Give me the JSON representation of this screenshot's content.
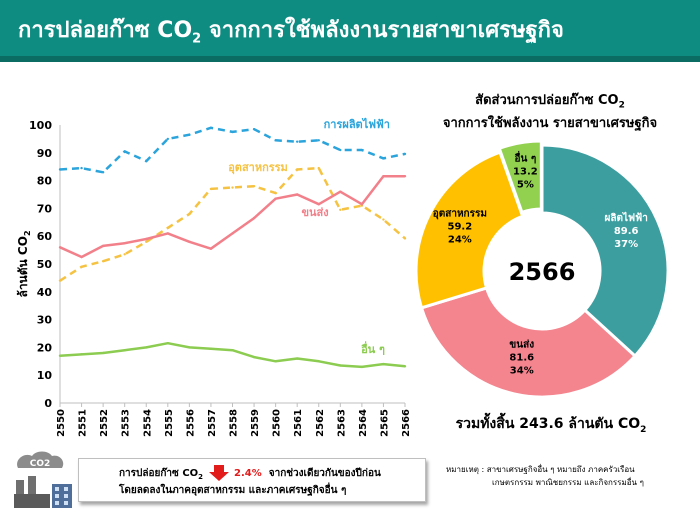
{
  "title": {
    "prefix": "การปล่อยก๊าซ CO",
    "sub": "2",
    "suffix": " จากการใช้พลังงานรายสาขาเศรษฐกิจ"
  },
  "chart_data": [
    {
      "type": "line",
      "ylabel": "ล้านตัน CO",
      "ylabel_sub": "2",
      "ylim": [
        0,
        100
      ],
      "yticks": [
        0,
        10,
        20,
        30,
        40,
        50,
        60,
        70,
        80,
        90,
        100
      ],
      "x": [
        "2550",
        "2551",
        "2552",
        "2553",
        "2554",
        "2555",
        "2556",
        "2557",
        "2558",
        "2559",
        "2560",
        "2561",
        "2562",
        "2563",
        "2564",
        "2565",
        "2566"
      ],
      "series": [
        {
          "name": "การผลิตไฟฟ้า",
          "color": "#2ba4dc",
          "dash": true,
          "values": [
            84,
            84.5,
            83,
            90.5,
            87,
            95,
            96.5,
            99,
            97.5,
            98.5,
            94.5,
            94,
            94.5,
            91,
            91,
            88,
            89.6
          ]
        },
        {
          "name": "อุตสาหกรรม",
          "color": "#f5c242",
          "dash": true,
          "values": [
            44,
            49,
            51,
            53.5,
            58,
            63,
            68,
            77,
            77.5,
            78,
            75.5,
            84,
            84.5,
            69.5,
            71,
            66,
            59.2
          ]
        },
        {
          "name": "ขนส่ง",
          "color": "#f2808a",
          "dash": false,
          "values": [
            56,
            52.5,
            56.5,
            57.5,
            59,
            61,
            58,
            55.5,
            61,
            66.5,
            73.5,
            75,
            71.5,
            76,
            71.5,
            81.6,
            81.6
          ]
        },
        {
          "name": "อื่น ๆ",
          "color": "#8ccc50",
          "dash": false,
          "values": [
            17,
            17.5,
            18,
            19,
            20,
            21.5,
            20,
            19.5,
            19,
            16.5,
            15,
            16,
            15,
            13.5,
            13,
            14,
            13.2
          ]
        }
      ]
    },
    {
      "type": "pie",
      "title_line1": "สัดส่วนการปล่อยก๊าซ CO",
      "title_sub": "2",
      "title_line2": "จากการใช้พลังงาน รายสาขาเศรษฐกิจ",
      "center_label": "2566",
      "slices": [
        {
          "name": "ผลิตไฟฟ้า",
          "value": 89.6,
          "value_label": "89.6",
          "pct_label": "37%",
          "color": "#3d9ea0",
          "text_color": "#ffffff"
        },
        {
          "name": "ขนส่ง",
          "value": 81.6,
          "value_label": "81.6",
          "pct_label": "34%",
          "color": "#f4848e",
          "text_color": "#000000"
        },
        {
          "name": "อุตสาหกรรม",
          "value": 59.2,
          "value_label": "59.2",
          "pct_label": "24%",
          "color": "#ffc000",
          "text_color": "#000000"
        },
        {
          "name": "อื่น ๆ",
          "value": 13.2,
          "value_label": "13.2",
          "pct_label": "5%",
          "color": "#92d050",
          "text_color": "#000000"
        }
      ]
    }
  ],
  "total": {
    "prefix": "รวมทั้งสิ้น 243.6 ล้านตัน CO",
    "sub": "2"
  },
  "note": {
    "co2_badge": "CO2",
    "line1_prefix": "การปล่อยก๊าซ CO",
    "line1_sub": "2",
    "pct": "2.4%",
    "line1_suffix": "จากช่วงเดียวกันของปีก่อน",
    "line2": "โดยลดลงในภาคอุตสาหกรรม และภาคเศรษฐกิจอื่น ๆ"
  },
  "remark": {
    "line1": "หมายเหตุ :   สาขาเศรษฐกิจอื่น ๆ หมายถึง ภาคครัวเรือน",
    "line2": "เกษตรกรรม พาณิชยกรรม และกิจกรรมอื่น ๆ"
  },
  "colors": {
    "header": "#0f8c82",
    "header_band": "#0b6c64",
    "down_arrow": "#e21b1b"
  }
}
